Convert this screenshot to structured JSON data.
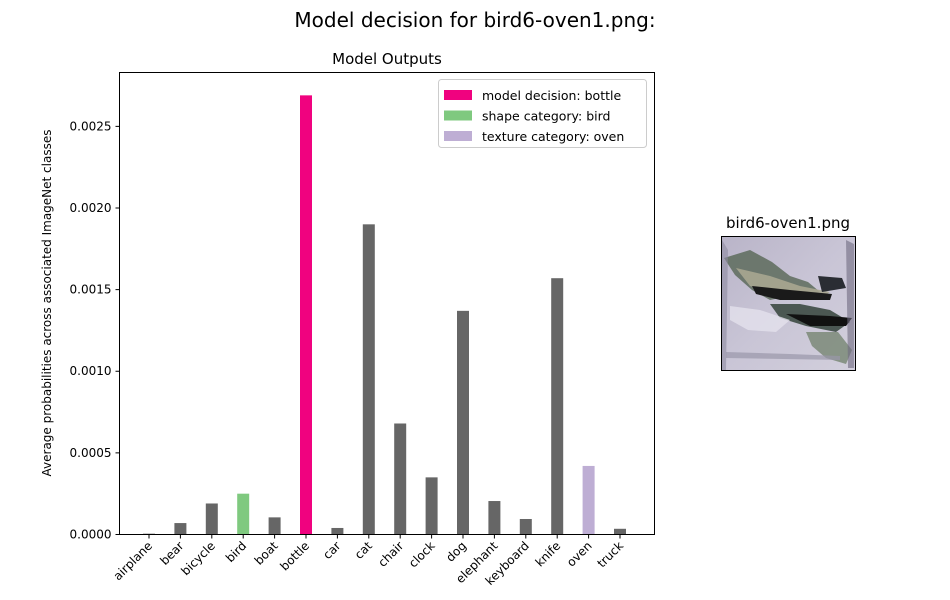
{
  "figure": {
    "title": "Model decision for bird6-oven1.png:"
  },
  "chart_data": {
    "type": "bar",
    "title": "Model Outputs",
    "xlabel": "",
    "ylabel": "Average probabilities across associated ImageNet classes",
    "ylim": [
      0,
      0.00283
    ],
    "yticks": [
      "0.0000",
      "0.0005",
      "0.0010",
      "0.0015",
      "0.0020",
      "0.0025"
    ],
    "categories": [
      "airplane",
      "bear",
      "bicycle",
      "bird",
      "boat",
      "bottle",
      "car",
      "cat",
      "chair",
      "clock",
      "dog",
      "elephant",
      "keyboard",
      "knife",
      "oven",
      "truck"
    ],
    "values": [
      5e-06,
      7e-05,
      0.00019,
      0.00025,
      0.000105,
      0.00269,
      4e-05,
      0.0019,
      0.00068,
      0.00035,
      0.00137,
      0.000205,
      9.5e-05,
      0.00157,
      0.00042,
      3.5e-05
    ],
    "bar_colors": [
      "#666666",
      "#666666",
      "#666666",
      "#7fc97f",
      "#666666",
      "#f0027f",
      "#666666",
      "#666666",
      "#666666",
      "#666666",
      "#666666",
      "#666666",
      "#666666",
      "#666666",
      "#beaed4",
      "#666666"
    ],
    "legend": {
      "placement": "upper-right",
      "entries": [
        {
          "label": "model decision: bottle",
          "color": "#f0027f"
        },
        {
          "label": "shape category: bird",
          "color": "#7fc97f"
        },
        {
          "label": "texture category: oven",
          "color": "#beaed4"
        }
      ]
    },
    "grid": false
  },
  "image_panel": {
    "title": "bird6-oven1.png"
  }
}
